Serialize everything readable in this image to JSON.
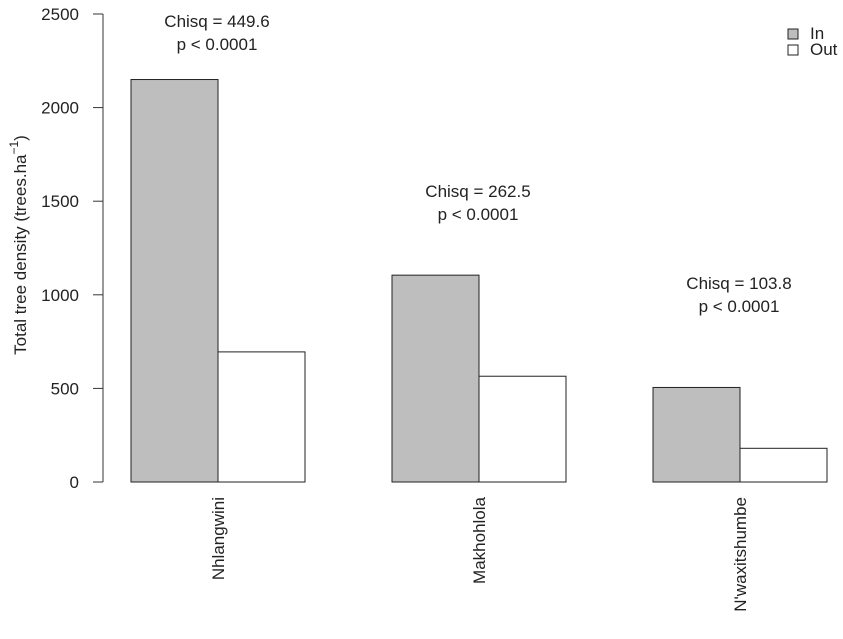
{
  "chart_data": {
    "type": "bar",
    "title": "",
    "xlabel": "",
    "ylabel": {
      "prefix": "Total tree density (trees.ha",
      "superscript": "−1",
      "suffix": ")"
    },
    "ylim": [
      0,
      2500
    ],
    "yticks": [
      "0",
      "500",
      "1000",
      "1500",
      "2000",
      "2500"
    ],
    "categories": [
      "Nhlangwini",
      "Makhohlola",
      "N'waxitshumbe"
    ],
    "series": [
      {
        "name": "In",
        "values": [
          2150,
          1105,
          505
        ],
        "color": "#bebebe"
      },
      {
        "name": "Out",
        "values": [
          695,
          565,
          180
        ],
        "color": "#ffffff"
      }
    ],
    "annotations": [
      {
        "category": "Nhlangwini",
        "lines": [
          "Chisq = 449.6",
          "p < 0.0001"
        ]
      },
      {
        "category": "Makhohlola",
        "lines": [
          "Chisq = 262.5",
          "p < 0.0001"
        ]
      },
      {
        "category": "N'waxitshumbe",
        "lines": [
          "Chisq = 103.8",
          "p < 0.0001"
        ]
      }
    ],
    "legend": {
      "position": "top-right"
    },
    "grid": false
  }
}
